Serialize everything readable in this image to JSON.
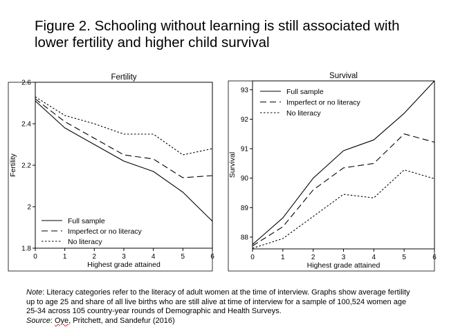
{
  "figure": {
    "title_line1": "Figure 2. Schooling without learning is still associated with",
    "title_line2": "lower fertility and higher child survival"
  },
  "chart_data": [
    {
      "type": "line",
      "title": "Fertility",
      "xlabel": "Highest grade attained",
      "ylabel": "Fertility",
      "x": [
        0,
        1,
        2,
        3,
        4,
        5,
        6
      ],
      "xlim": [
        0,
        6
      ],
      "ylim": [
        1.8,
        2.6
      ],
      "yticks": [
        "1.8",
        "2",
        "2.2",
        "2.4",
        "2.6"
      ],
      "xticks": [
        "0",
        "1",
        "2",
        "3",
        "4",
        "5",
        "6"
      ],
      "legend_position": "bottom-left",
      "series": [
        {
          "name": "Full sample",
          "style": "solid",
          "values": [
            2.51,
            2.38,
            2.3,
            2.22,
            2.17,
            2.07,
            1.93
          ]
        },
        {
          "name": "Imperfect or no literacy",
          "style": "dashed",
          "values": [
            2.52,
            2.41,
            2.33,
            2.25,
            2.23,
            2.14,
            2.15
          ]
        },
        {
          "name": "No literacy",
          "style": "dotted",
          "values": [
            2.53,
            2.44,
            2.4,
            2.35,
            2.35,
            2.25,
            2.28
          ]
        }
      ]
    },
    {
      "type": "line",
      "title": "Survival",
      "xlabel": "Highest grade attained",
      "ylabel": "Survival",
      "x": [
        0,
        1,
        2,
        3,
        4,
        5,
        6
      ],
      "xlim": [
        0,
        6
      ],
      "ylim": [
        87.6,
        93.3
      ],
      "yticks": [
        "88",
        "89",
        "90",
        "91",
        "92",
        "93"
      ],
      "xticks": [
        "0",
        "1",
        "2",
        "3",
        "4",
        "5",
        "6"
      ],
      "legend_position": "top-left",
      "series": [
        {
          "name": "Full sample",
          "style": "solid",
          "values": [
            87.75,
            88.65,
            90.0,
            90.93,
            91.3,
            92.2,
            93.3
          ]
        },
        {
          "name": "Imperfect or no literacy",
          "style": "dashed",
          "values": [
            87.7,
            88.35,
            89.6,
            90.35,
            90.5,
            91.5,
            91.22
          ]
        },
        {
          "name": "No literacy",
          "style": "dotted",
          "values": [
            87.62,
            87.95,
            88.7,
            89.45,
            89.33,
            90.28,
            89.98
          ]
        }
      ]
    }
  ],
  "note": {
    "label": "Note",
    "line1": ": Literacy categories refer to the literacy of adult women at the time of interview. Graphs show average fertility",
    "line2": "up to age 25 and share of all live births who are still alive at time of interview for a sample of 100,524 women age",
    "line3": "25-34 across 105 country-year rounds of Demographic and Health Surveys.",
    "source_label": "Source",
    "source_author": "Oye",
    "source_rest": ", Pritchett, and Sandefur (2016)"
  }
}
